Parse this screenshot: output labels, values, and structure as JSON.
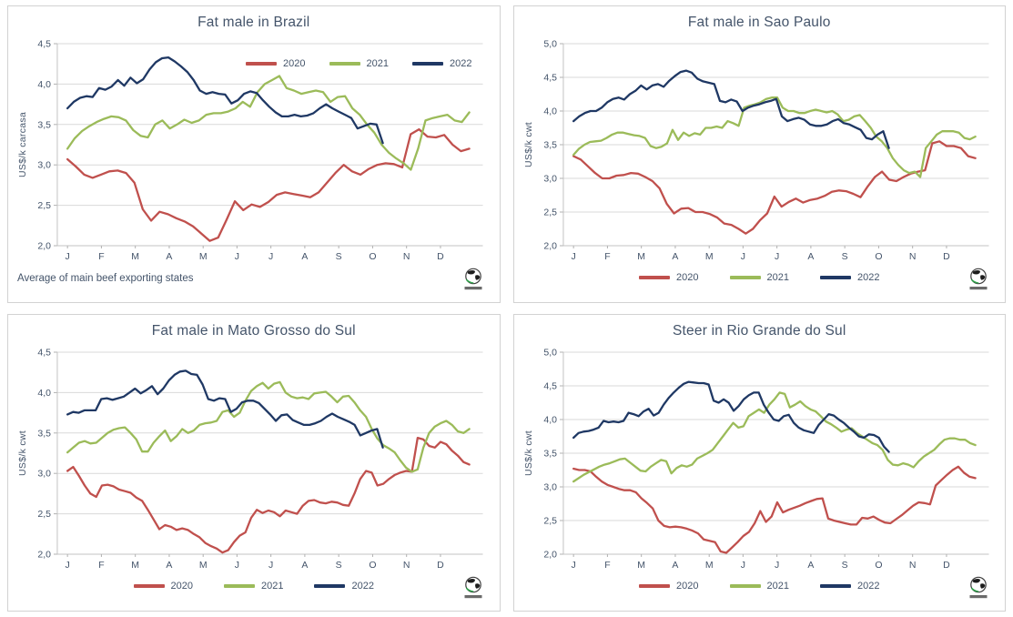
{
  "theme": {
    "red": "#c0504d",
    "green": "#9bbb59",
    "navy": "#1f3864",
    "grid_line": "#d9d9d9",
    "axis_line": "#c3c3c3",
    "tick_mark": "#b0b0b0",
    "text": "#44546a",
    "panel_border": "#d2d2d2",
    "background": "#ffffff"
  },
  "icons": {
    "logo": "globe-icon"
  },
  "chart_data": [
    {
      "type": "line",
      "title": "Fat male in Brazil",
      "ylabel": "US$/k carcasa",
      "ylim": [
        2.0,
        4.5
      ],
      "ytick_labels": [
        "2,0",
        "2,5",
        "3,0",
        "3,5",
        "4,0",
        "4,5"
      ],
      "x_months": [
        "J",
        "F",
        "M",
        "A",
        "M",
        "J",
        "J",
        "A",
        "S",
        "O",
        "N",
        "D"
      ],
      "grid": true,
      "legend_position": "top-right",
      "footnote": "Average  of main beef exporting states",
      "series": [
        {
          "name": "2020",
          "color": "#c0504d",
          "span_months": 11.85,
          "values": [
            3.07,
            2.98,
            2.88,
            2.84,
            2.88,
            2.92,
            2.93,
            2.9,
            2.78,
            2.45,
            2.31,
            2.42,
            2.39,
            2.34,
            2.3,
            2.24,
            2.15,
            2.06,
            2.1,
            2.32,
            2.55,
            2.44,
            2.51,
            2.48,
            2.54,
            2.63,
            2.66,
            2.64,
            2.62,
            2.6,
            2.66,
            2.78,
            2.9,
            3.0,
            2.92,
            2.88,
            2.95,
            3.0,
            3.02,
            3.01,
            2.97,
            3.38,
            3.44,
            3.35,
            3.34,
            3.37,
            3.25,
            3.17,
            3.2
          ]
        },
        {
          "name": "2021",
          "color": "#9bbb59",
          "span_months": 11.85,
          "values": [
            3.2,
            3.33,
            3.42,
            3.48,
            3.53,
            3.57,
            3.6,
            3.59,
            3.55,
            3.43,
            3.36,
            3.34,
            3.5,
            3.55,
            3.45,
            3.5,
            3.56,
            3.52,
            3.55,
            3.62,
            3.64,
            3.64,
            3.66,
            3.7,
            3.78,
            3.72,
            3.9,
            4.0,
            4.05,
            4.1,
            3.95,
            3.92,
            3.88,
            3.9,
            3.92,
            3.9,
            3.78,
            3.84,
            3.85,
            3.7,
            3.62,
            3.5,
            3.4,
            3.25,
            3.15,
            3.08,
            3.02,
            2.94,
            3.2,
            3.55,
            3.58,
            3.6,
            3.62,
            3.55,
            3.53,
            3.65
          ]
        },
        {
          "name": "2022",
          "color": "#1f3864",
          "span_months": 9.3,
          "values": [
            3.7,
            3.78,
            3.83,
            3.85,
            3.84,
            3.95,
            3.93,
            3.97,
            4.05,
            3.98,
            4.08,
            4.01,
            4.06,
            4.18,
            4.27,
            4.32,
            4.33,
            4.28,
            4.22,
            4.15,
            4.05,
            3.92,
            3.88,
            3.9,
            3.88,
            3.87,
            3.76,
            3.8,
            3.88,
            3.91,
            3.89,
            3.8,
            3.72,
            3.65,
            3.6,
            3.6,
            3.62,
            3.6,
            3.61,
            3.64,
            3.7,
            3.75,
            3.7,
            3.66,
            3.62,
            3.58,
            3.45,
            3.48,
            3.51,
            3.5,
            3.27
          ]
        }
      ]
    },
    {
      "type": "line",
      "title": "Fat male in Sao Paulo",
      "ylabel": "US$/k cwt",
      "ylim": [
        2.0,
        5.0
      ],
      "ytick_labels": [
        "2,0",
        "2,5",
        "3,0",
        "3,5",
        "4,0",
        "4,5",
        "5,0"
      ],
      "x_months": [
        "J",
        "F",
        "M",
        "A",
        "M",
        "J",
        "J",
        "A",
        "S",
        "O",
        "N",
        "D"
      ],
      "grid": true,
      "legend_position": "bottom",
      "footnote": "",
      "series": [
        {
          "name": "2020",
          "color": "#c0504d",
          "span_months": 11.85,
          "values": [
            3.33,
            3.28,
            3.18,
            3.08,
            3.0,
            3.0,
            3.04,
            3.05,
            3.08,
            3.07,
            3.02,
            2.96,
            2.85,
            2.62,
            2.48,
            2.55,
            2.56,
            2.5,
            2.5,
            2.47,
            2.42,
            2.33,
            2.31,
            2.25,
            2.18,
            2.25,
            2.38,
            2.48,
            2.73,
            2.58,
            2.65,
            2.7,
            2.64,
            2.68,
            2.7,
            2.74,
            2.8,
            2.82,
            2.81,
            2.77,
            2.72,
            2.88,
            3.02,
            3.1,
            2.98,
            2.96,
            3.02,
            3.07,
            3.1,
            3.12,
            3.52,
            3.55,
            3.48,
            3.48,
            3.45,
            3.33,
            3.3
          ]
        },
        {
          "name": "2021",
          "color": "#9bbb59",
          "span_months": 11.85,
          "values": [
            3.35,
            3.44,
            3.5,
            3.54,
            3.55,
            3.56,
            3.6,
            3.65,
            3.68,
            3.68,
            3.66,
            3.64,
            3.63,
            3.6,
            3.48,
            3.45,
            3.47,
            3.52,
            3.72,
            3.57,
            3.68,
            3.63,
            3.67,
            3.65,
            3.75,
            3.75,
            3.77,
            3.75,
            3.85,
            3.82,
            3.78,
            4.05,
            4.08,
            4.1,
            4.13,
            4.18,
            4.2,
            4.2,
            4.05,
            4.0,
            4.0,
            3.97,
            3.97,
            4.0,
            4.02,
            4.0,
            3.98,
            4.0,
            3.95,
            3.85,
            3.87,
            3.92,
            3.94,
            3.85,
            3.75,
            3.62,
            3.55,
            3.45,
            3.3,
            3.2,
            3.12,
            3.08,
            3.1,
            3.02,
            3.45,
            3.55,
            3.65,
            3.7,
            3.7,
            3.7,
            3.68,
            3.6,
            3.58,
            3.62
          ]
        },
        {
          "name": "2022",
          "color": "#1f3864",
          "span_months": 9.3,
          "values": [
            3.85,
            3.92,
            3.97,
            4.0,
            4.0,
            4.05,
            4.13,
            4.18,
            4.2,
            4.17,
            4.25,
            4.3,
            4.38,
            4.32,
            4.38,
            4.4,
            4.36,
            4.45,
            4.52,
            4.58,
            4.6,
            4.57,
            4.48,
            4.44,
            4.42,
            4.4,
            4.15,
            4.13,
            4.17,
            4.14,
            4.0,
            4.05,
            4.08,
            4.1,
            4.13,
            4.15,
            4.18,
            3.92,
            3.85,
            3.88,
            3.9,
            3.87,
            3.8,
            3.78,
            3.78,
            3.8,
            3.85,
            3.88,
            3.82,
            3.8,
            3.76,
            3.72,
            3.6,
            3.58,
            3.65,
            3.7,
            3.45
          ]
        }
      ]
    },
    {
      "type": "line",
      "title": "Fat male in Mato Grosso do Sul",
      "ylabel": "US$/k cwt",
      "ylim": [
        2.0,
        4.5
      ],
      "ytick_labels": [
        "2,0",
        "2,5",
        "3,0",
        "3,5",
        "4,0",
        "4,5"
      ],
      "x_months": [
        "J",
        "F",
        "M",
        "A",
        "M",
        "J",
        "J",
        "A",
        "S",
        "O",
        "N",
        "D"
      ],
      "grid": true,
      "legend_position": "bottom",
      "footnote": "",
      "series": [
        {
          "name": "2020",
          "color": "#c0504d",
          "span_months": 11.85,
          "values": [
            3.03,
            3.08,
            2.97,
            2.85,
            2.75,
            2.71,
            2.85,
            2.86,
            2.84,
            2.8,
            2.78,
            2.76,
            2.7,
            2.66,
            2.55,
            2.43,
            2.31,
            2.36,
            2.34,
            2.3,
            2.32,
            2.3,
            2.25,
            2.21,
            2.14,
            2.1,
            2.07,
            2.02,
            2.05,
            2.15,
            2.23,
            2.27,
            2.45,
            2.55,
            2.51,
            2.54,
            2.52,
            2.47,
            2.54,
            2.52,
            2.5,
            2.6,
            2.66,
            2.67,
            2.64,
            2.63,
            2.65,
            2.64,
            2.61,
            2.6,
            2.75,
            2.93,
            3.03,
            3.01,
            2.85,
            2.87,
            2.93,
            2.98,
            3.01,
            3.03,
            3.02,
            3.44,
            3.42,
            3.34,
            3.32,
            3.39,
            3.36,
            3.28,
            3.22,
            3.14,
            3.11
          ]
        },
        {
          "name": "2021",
          "color": "#9bbb59",
          "span_months": 11.85,
          "values": [
            3.26,
            3.32,
            3.38,
            3.4,
            3.37,
            3.38,
            3.44,
            3.5,
            3.54,
            3.56,
            3.57,
            3.5,
            3.42,
            3.27,
            3.27,
            3.38,
            3.46,
            3.53,
            3.4,
            3.46,
            3.55,
            3.5,
            3.53,
            3.6,
            3.62,
            3.63,
            3.65,
            3.76,
            3.78,
            3.7,
            3.75,
            3.9,
            4.02,
            4.08,
            4.12,
            4.05,
            4.11,
            4.13,
            4.0,
            3.95,
            3.93,
            3.94,
            3.92,
            3.99,
            4.0,
            4.01,
            3.95,
            3.88,
            3.95,
            3.96,
            3.88,
            3.78,
            3.7,
            3.55,
            3.43,
            3.35,
            3.31,
            3.26,
            3.16,
            3.07,
            3.02,
            3.05,
            3.32,
            3.5,
            3.58,
            3.62,
            3.65,
            3.6,
            3.52,
            3.5,
            3.55
          ]
        },
        {
          "name": "2022",
          "color": "#1f3864",
          "span_months": 9.3,
          "values": [
            3.73,
            3.76,
            3.75,
            3.78,
            3.78,
            3.78,
            3.92,
            3.93,
            3.91,
            3.93,
            3.95,
            4.0,
            4.05,
            3.99,
            4.03,
            4.08,
            3.98,
            4.05,
            4.15,
            4.22,
            4.26,
            4.27,
            4.23,
            4.22,
            4.1,
            3.92,
            3.9,
            3.93,
            3.92,
            3.76,
            3.8,
            3.88,
            3.9,
            3.9,
            3.87,
            3.8,
            3.73,
            3.65,
            3.72,
            3.73,
            3.66,
            3.63,
            3.6,
            3.6,
            3.62,
            3.65,
            3.7,
            3.74,
            3.7,
            3.67,
            3.64,
            3.6,
            3.47,
            3.5,
            3.53,
            3.55,
            3.32
          ]
        }
      ]
    },
    {
      "type": "line",
      "title": "Steer  in Rio Grande do Sul",
      "ylabel": "US$/k cwt",
      "ylim": [
        2.0,
        5.0
      ],
      "ytick_labels": [
        "2,0",
        "2,5",
        "3,0",
        "3,5",
        "4,0",
        "4,5",
        "5,0"
      ],
      "x_months": [
        "J",
        "F",
        "M",
        "A",
        "M",
        "J",
        "J",
        "A",
        "S",
        "O",
        "N",
        "D"
      ],
      "grid": true,
      "legend_position": "bottom",
      "footnote": "",
      "series": [
        {
          "name": "2020",
          "color": "#c0504d",
          "span_months": 11.85,
          "values": [
            3.27,
            3.25,
            3.25,
            3.23,
            3.15,
            3.08,
            3.03,
            3.0,
            2.97,
            2.95,
            2.95,
            2.92,
            2.83,
            2.76,
            2.68,
            2.5,
            2.42,
            2.4,
            2.41,
            2.4,
            2.38,
            2.35,
            2.31,
            2.22,
            2.2,
            2.18,
            2.04,
            2.02,
            2.1,
            2.18,
            2.27,
            2.33,
            2.46,
            2.64,
            2.48,
            2.56,
            2.77,
            2.62,
            2.66,
            2.69,
            2.72,
            2.76,
            2.79,
            2.82,
            2.83,
            2.53,
            2.5,
            2.48,
            2.46,
            2.44,
            2.44,
            2.54,
            2.53,
            2.56,
            2.51,
            2.47,
            2.46,
            2.52,
            2.58,
            2.65,
            2.72,
            2.77,
            2.76,
            2.74,
            3.02,
            3.1,
            3.18,
            3.25,
            3.3,
            3.21,
            3.15,
            3.13
          ]
        },
        {
          "name": "2021",
          "color": "#9bbb59",
          "span_months": 11.85,
          "values": [
            3.08,
            3.13,
            3.18,
            3.22,
            3.26,
            3.3,
            3.33,
            3.35,
            3.38,
            3.41,
            3.42,
            3.36,
            3.3,
            3.24,
            3.23,
            3.3,
            3.35,
            3.4,
            3.38,
            3.2,
            3.28,
            3.32,
            3.3,
            3.33,
            3.42,
            3.46,
            3.5,
            3.55,
            3.65,
            3.75,
            3.85,
            3.95,
            3.88,
            3.9,
            4.05,
            4.1,
            4.15,
            4.1,
            4.22,
            4.3,
            4.4,
            4.38,
            4.18,
            4.22,
            4.27,
            4.2,
            4.15,
            4.12,
            4.05,
            3.97,
            3.93,
            3.88,
            3.82,
            3.85,
            3.87,
            3.8,
            3.75,
            3.7,
            3.65,
            3.62,
            3.55,
            3.4,
            3.33,
            3.32,
            3.35,
            3.33,
            3.29,
            3.38,
            3.45,
            3.5,
            3.55,
            3.63,
            3.7,
            3.72,
            3.72,
            3.7,
            3.7,
            3.65,
            3.62
          ]
        },
        {
          "name": "2022",
          "color": "#1f3864",
          "span_months": 9.3,
          "values": [
            3.73,
            3.8,
            3.82,
            3.83,
            3.85,
            3.88,
            3.98,
            3.96,
            3.97,
            3.96,
            3.98,
            4.1,
            4.08,
            4.05,
            4.12,
            4.16,
            4.06,
            4.1,
            4.22,
            4.32,
            4.4,
            4.47,
            4.53,
            4.56,
            4.55,
            4.54,
            4.54,
            4.52,
            4.28,
            4.25,
            4.3,
            4.25,
            4.13,
            4.2,
            4.3,
            4.36,
            4.4,
            4.4,
            4.22,
            4.1,
            4.0,
            3.98,
            4.05,
            4.07,
            3.95,
            3.88,
            3.84,
            3.82,
            3.8,
            3.92,
            4.0,
            4.08,
            4.06,
            4.0,
            3.95,
            3.88,
            3.82,
            3.75,
            3.73,
            3.78,
            3.77,
            3.73,
            3.6,
            3.52
          ]
        }
      ]
    }
  ]
}
